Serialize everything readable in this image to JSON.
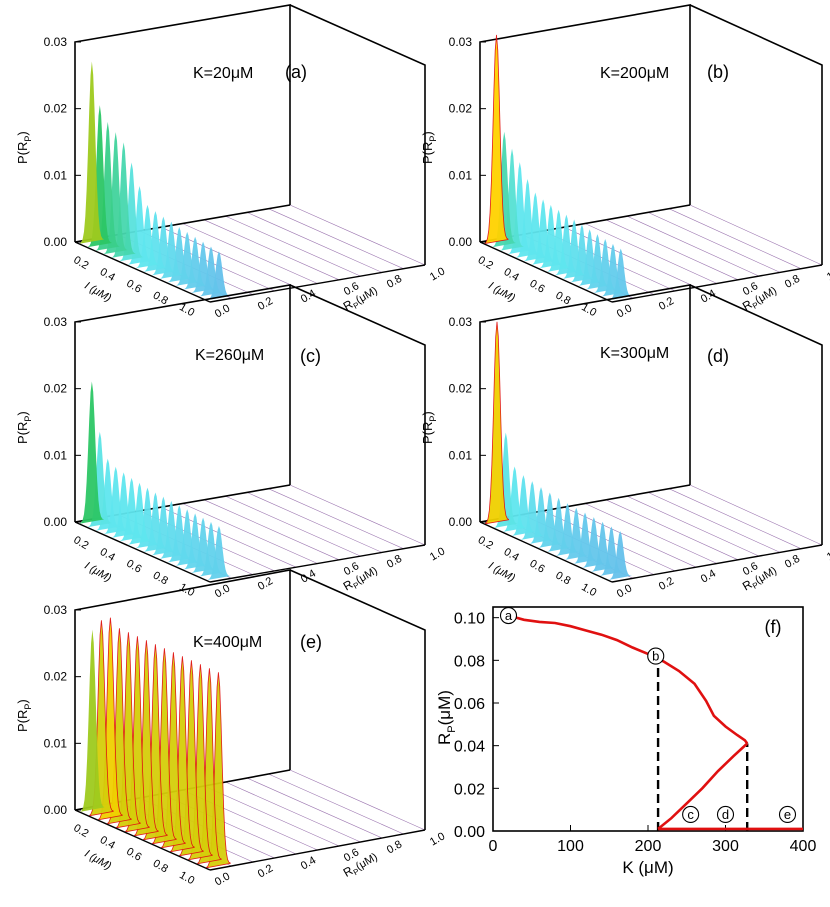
{
  "colors": {
    "axis": "#000000",
    "grid": "#9c76b0",
    "curve": "#e01010",
    "peak_low": "#7a3fe0",
    "peak_mid": "#5fe6ee",
    "peak_high": "#22c04a",
    "peak_top": "#f0d000",
    "dashed": "#000000"
  },
  "chart_data": [
    {
      "id": "a",
      "type": "surface3d",
      "title": "K=20μM",
      "label": "(a)",
      "zlabel": "P(R",
      "zlabel_sub": "P",
      "zlabel_close": ")",
      "xlabel": "I (μM)",
      "ylabel": "R",
      "ylabel_sub": "P",
      "ylabel_unit": "(μM)",
      "zticks": [
        "0.03",
        "0.02",
        "0.01",
        "0.00"
      ],
      "xticks": [
        "0.2",
        "0.4",
        "0.6",
        "0.8",
        "1.0"
      ],
      "yticks": [
        "0.0",
        "0.2",
        "0.4",
        "0.6",
        "0.8",
        "1.0"
      ],
      "zlim": [
        0,
        0.03
      ],
      "peaks": [
        0.027,
        0.021,
        0.019,
        0.018,
        0.017,
        0.0145,
        0.0115,
        0.0092,
        0.0088,
        0.0085,
        0.0083,
        0.008,
        0.0078,
        0.0076,
        0.0074,
        0.0072,
        0.007
      ]
    },
    {
      "id": "b",
      "type": "surface3d",
      "title": "K=200μM",
      "label": "(b)",
      "zlabel": "P(R",
      "zlabel_sub": "P",
      "zlabel_close": ")",
      "xlabel": "I (μM)",
      "ylabel": "R",
      "ylabel_sub": "P",
      "ylabel_unit": "(μM)",
      "zticks": [
        "0.03",
        "0.02",
        "0.01",
        "0.00"
      ],
      "xticks": [
        "0.2",
        "0.4",
        "0.6",
        "0.8",
        "1.0"
      ],
      "yticks": [
        "0.0",
        "0.2",
        "0.4",
        "0.6",
        "0.8",
        "1.0"
      ],
      "zlim": [
        0,
        0.03
      ],
      "peaks": [
        0.031,
        0.017,
        0.015,
        0.0135,
        0.0115,
        0.01,
        0.0095,
        0.0092,
        0.009,
        0.0088,
        0.0086,
        0.0084,
        0.0082,
        0.008,
        0.0078,
        0.0076,
        0.0074
      ]
    },
    {
      "id": "c",
      "type": "surface3d",
      "title": "K=260μM",
      "label": "(c)",
      "zlabel": "P(R",
      "zlabel_sub": "P",
      "zlabel_close": ")",
      "xlabel": "I (μM)",
      "ylabel": "R",
      "ylabel_sub": "P",
      "ylabel_unit": "(μM)",
      "zticks": [
        "0.03",
        "0.02",
        "0.01",
        "0.00"
      ],
      "xticks": [
        "0.2",
        "0.4",
        "0.6",
        "0.8",
        "1.0"
      ],
      "yticks": [
        "0.0",
        "0.2",
        "0.4",
        "0.6",
        "0.8",
        "1.0"
      ],
      "zlim": [
        0,
        0.03
      ],
      "peaks": [
        0.021,
        0.014,
        0.0105,
        0.0098,
        0.0095,
        0.0092,
        0.009,
        0.0088,
        0.0086,
        0.0085,
        0.0084,
        0.0083,
        0.0082,
        0.0081,
        0.008,
        0.0079,
        0.0078
      ]
    },
    {
      "id": "d",
      "type": "surface3d",
      "title": "K=300μM",
      "label": "(d)",
      "zlabel": "P(R",
      "zlabel_sub": "P",
      "zlabel_close": ")",
      "xlabel": "I (μM)",
      "ylabel": "R",
      "ylabel_sub": "P",
      "ylabel_unit": "(μM)",
      "zticks": [
        "0.03",
        "0.02",
        "0.01",
        "0.00"
      ],
      "xticks": [
        "0.2",
        "0.4",
        "0.6",
        "0.8",
        "1.0"
      ],
      "yticks": [
        "0.0",
        "0.2",
        "0.4",
        "0.6",
        "0.8",
        "1.0"
      ],
      "zlim": [
        0,
        0.03
      ],
      "peaks": [
        0.03,
        0.014,
        0.0095,
        0.0088,
        0.0085,
        0.0082,
        0.008,
        0.0078,
        0.0076,
        0.0075,
        0.0074,
        0.0073,
        0.0072,
        0.0071,
        0.007
      ]
    },
    {
      "id": "e",
      "type": "surface3d",
      "title": "K=400μM",
      "label": "(e)",
      "zlabel": "P(R",
      "zlabel_sub": "P",
      "zlabel_close": ")",
      "xlabel": "I (μM)",
      "ylabel": "R",
      "ylabel_sub": "P",
      "ylabel_unit": "(μM)",
      "zticks": [
        "0.03",
        "0.02",
        "0.01",
        "0.00"
      ],
      "xticks": [
        "0.2",
        "0.4",
        "0.6",
        "0.8",
        "1.0"
      ],
      "yticks": [
        "0.0",
        "0.2",
        "0.4",
        "0.6",
        "0.8",
        "1.0"
      ],
      "zlim": [
        0,
        0.03
      ],
      "peaks": [
        0.027,
        0.029,
        0.03,
        0.029,
        0.029,
        0.029,
        0.029,
        0.029,
        0.029,
        0.029,
        0.029,
        0.029,
        0.029,
        0.029,
        0.029
      ]
    },
    {
      "id": "f",
      "type": "line",
      "label": "(f)",
      "xlabel": "K (μM)",
      "ylabel": "R",
      "ylabel_sub": "P",
      "ylabel_unit": "(μM)",
      "xlim": [
        0,
        400
      ],
      "ylim": [
        0,
        0.105
      ],
      "xticks": [
        0,
        100,
        200,
        300,
        400
      ],
      "yticks": [
        0.0,
        0.02,
        0.04,
        0.06,
        0.08,
        0.1
      ],
      "ytick_labels": [
        "0.00",
        "0.02",
        "0.04",
        "0.06",
        "0.08",
        "0.10"
      ],
      "upper_branch": [
        [
          20,
          0.101
        ],
        [
          40,
          0.099
        ],
        [
          60,
          0.098
        ],
        [
          80,
          0.0975
        ],
        [
          100,
          0.096
        ],
        [
          120,
          0.094
        ],
        [
          140,
          0.092
        ],
        [
          160,
          0.0895
        ],
        [
          180,
          0.086
        ],
        [
          200,
          0.083
        ],
        [
          220,
          0.0795
        ],
        [
          240,
          0.075
        ],
        [
          260,
          0.069
        ],
        [
          275,
          0.061
        ],
        [
          285,
          0.054
        ],
        [
          300,
          0.049
        ],
        [
          315,
          0.045
        ],
        [
          325,
          0.0425
        ],
        [
          328,
          0.041
        ]
      ],
      "middle_branch": [
        [
          213,
          0.001
        ],
        [
          230,
          0.006
        ],
        [
          250,
          0.013
        ],
        [
          270,
          0.02
        ],
        [
          290,
          0.028
        ],
        [
          310,
          0.035
        ],
        [
          328,
          0.041
        ]
      ],
      "lower_branch": [
        [
          213,
          0.001
        ],
        [
          300,
          0.001
        ],
        [
          400,
          0.001
        ]
      ],
      "dashed_lines": [
        {
          "x": 213,
          "y_top": 0.081
        },
        {
          "x": 328,
          "y_top": 0.041
        }
      ],
      "points": [
        {
          "label": "a",
          "x": 20,
          "y": 0.101
        },
        {
          "label": "b",
          "x": 210,
          "y": 0.082
        },
        {
          "label": "c",
          "x": 255,
          "y": 0.004
        },
        {
          "label": "d",
          "x": 300,
          "y": 0.004
        },
        {
          "label": "e",
          "x": 380,
          "y": 0.004
        }
      ]
    }
  ]
}
